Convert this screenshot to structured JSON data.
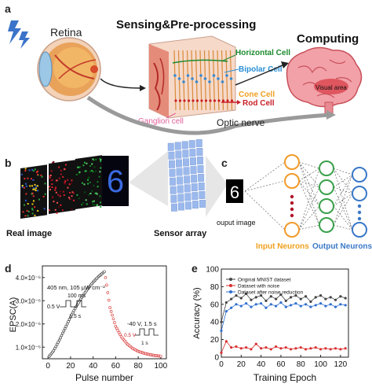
{
  "panel_a": {
    "letter": "a",
    "retina_label": "Retina",
    "title_sensing": "Sensing&Pre-processing",
    "title_computing": "Computing",
    "horizontal_cell": "Horizontal Cell",
    "bipolar_cell": "Bipolar Cell",
    "cone_cell": "Cone Cell",
    "rod_cell": "Rod Cell",
    "ganglion_cell": "Ganglion cell",
    "optic_nerve": "Optic nerve",
    "visual_area": "Visual area"
  },
  "panel_b": {
    "letter": "b",
    "real_image": "Real image",
    "sensor_array": "Sensor array",
    "digit": "6"
  },
  "panel_c": {
    "letter": "c",
    "output_image": "ouput image",
    "input_neurons": "Input Neurons",
    "output_neurons": "Output Neurons",
    "digit": "6"
  },
  "panel_d": {
    "letter": "d",
    "ylabel": "EPSC(A)",
    "xlabel": "Pulse number",
    "annotation_light": "405 nm, 105 μW cm⁻²",
    "annotation_pulse_width": "100 ms",
    "annotation_pulse_v": "0.5 V",
    "annotation_pulse_period": "1.5 s",
    "annotation_reset": "-40 V, 1.5 s",
    "annotation_reset_v": "0.5 V",
    "annotation_reset_period": "1 s",
    "y_ticks": [
      "1.0×10⁻⁶",
      "2.0×10⁻⁶",
      "3.0×10⁻⁶",
      "4.0×10⁻⁶"
    ],
    "x_ticks": [
      "0",
      "20",
      "40",
      "60",
      "80",
      "100"
    ]
  },
  "panel_e": {
    "letter": "e",
    "ylabel": "Accuracy (%)",
    "xlabel": "Training Epoch",
    "legend": [
      "Original MNIST dataset",
      "Dataset with noise",
      "Dataset after noise reduction"
    ],
    "y_ticks": [
      "0",
      "20",
      "40",
      "60",
      "80",
      "100"
    ],
    "x_ticks": [
      "0",
      "20",
      "40",
      "60",
      "80",
      "100",
      "120"
    ]
  },
  "colors": {
    "title_green": "#1b8a2e",
    "title_blue": "#2a8fd6",
    "title_orange": "#f0a020",
    "title_red": "#c8202a",
    "title_pink": "#e0609a",
    "dark_series": "#444444",
    "red_series": "#d83030",
    "blue_series": "#2f6fd0",
    "input_neuron": "#f29b2a",
    "hidden_neuron": "#3aa04a",
    "output_neuron": "#3a78c8"
  },
  "chart_data": [
    {
      "type": "scatter",
      "panel": "d",
      "xlabel": "Pulse number",
      "ylabel": "EPSC(A)",
      "xlim": [
        -5,
        105
      ],
      "ylim": [
        5e-07,
        4.5e-06
      ],
      "series": [
        {
          "x": [
            1,
            5,
            10,
            15,
            20,
            25,
            30,
            35,
            40,
            45,
            50
          ],
          "values": [
            6e-07,
            8.5e-07,
            1.3e-06,
            1.8e-06,
            2.3e-06,
            2.75e-06,
            3.15e-06,
            3.5e-06,
            3.8e-06,
            4.05e-06,
            4.25e-06
          ]
        },
        {
          "x": [
            51,
            55,
            60,
            65,
            70,
            75,
            80,
            85,
            90,
            95,
            100
          ],
          "values": [
            4e-06,
            2.7e-06,
            1.9e-06,
            1.45e-06,
            1.15e-06,
            9.5e-07,
            8.2e-07,
            7.4e-07,
            6.8e-07,
            6.4e-07,
            6.1e-07
          ]
        }
      ]
    },
    {
      "type": "line",
      "panel": "e",
      "xlabel": "Training Epoch",
      "ylabel": "Accuracy (%)",
      "xlim": [
        0,
        128
      ],
      "ylim": [
        0,
        100
      ],
      "x": [
        0,
        5,
        10,
        15,
        20,
        25,
        30,
        35,
        40,
        45,
        50,
        55,
        60,
        65,
        70,
        75,
        80,
        85,
        90,
        95,
        100,
        105,
        110,
        115,
        120,
        125
      ],
      "series": [
        {
          "name": "Original MNIST dataset",
          "values": [
            40,
            62,
            66,
            70,
            67,
            72,
            65,
            68,
            70,
            64,
            69,
            66,
            71,
            64,
            68,
            70,
            66,
            69,
            63,
            68,
            70,
            66,
            68,
            65,
            69,
            67
          ]
        },
        {
          "name": "Dataset with noise",
          "values": [
            5,
            18,
            11,
            12,
            10,
            11,
            9,
            15,
            10,
            11,
            9,
            12,
            10,
            11,
            9,
            10,
            11,
            9,
            10,
            11,
            9,
            10,
            9,
            10,
            9,
            10
          ]
        },
        {
          "name": "Dataset after noise reduction",
          "values": [
            30,
            52,
            56,
            60,
            58,
            61,
            57,
            60,
            61,
            56,
            60,
            58,
            62,
            57,
            59,
            61,
            58,
            60,
            57,
            59,
            61,
            58,
            60,
            57,
            60,
            59
          ]
        }
      ]
    }
  ]
}
